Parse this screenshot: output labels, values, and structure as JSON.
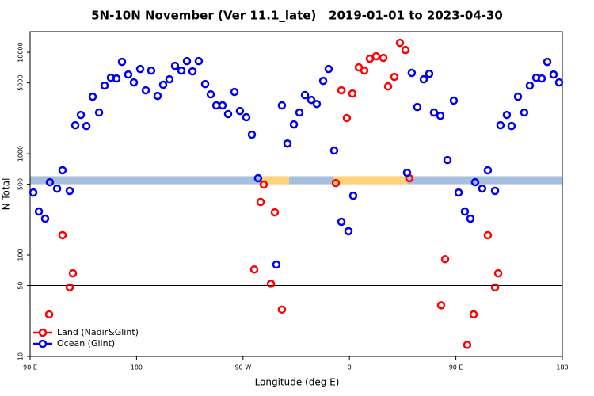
{
  "chart_data": {
    "type": "scatter",
    "title": "5N-10N November (Ver 11.1_late)   2019-01-01 to 2023-04-30",
    "x_label": "Longitude (deg E)",
    "y_label": "N Total",
    "log_y": true,
    "legend": "lower left",
    "xlim": [
      90,
      540
    ],
    "xticks": [
      {
        "value": 90,
        "label": "90 E"
      },
      {
        "value": 180,
        "label": "180"
      },
      {
        "value": 270,
        "label": "90 W"
      },
      {
        "value": 360,
        "label": "0"
      },
      {
        "value": 450,
        "label": "90 E"
      },
      {
        "value": 540,
        "label": "180"
      }
    ],
    "ylim": [
      10,
      16000
    ],
    "yticks": [
      10,
      50,
      100,
      500,
      1000,
      5000,
      10000
    ],
    "hline": 50,
    "band": {
      "ylim": [
        500,
        600
      ],
      "color": "#a7bfdc",
      "highlight_color": "#ffd37a",
      "highlights": [
        [
          285,
          309
        ],
        [
          346,
          409
        ]
      ]
    },
    "series": [
      {
        "name": "Land (Nadir&Glint)",
        "color": "#ff0000",
        "x": [
          106.1,
          117.4,
          123.5,
          126.2,
          279.5,
          284.9,
          287.5,
          293.6,
          296.9,
          302.9,
          348.5,
          353.2,
          357.8,
          362.5,
          367.9,
          372.6,
          377.3,
          382.6,
          388.7,
          392.7,
          398.0,
          402.7,
          407.4,
          410.7,
          437.5,
          440.9,
          459.6,
          465.0,
          477.0,
          483.1,
          485.8
        ],
        "values": [
          26,
          157,
          48,
          66,
          72,
          334,
          496,
          52,
          264,
          29,
          514,
          4220,
          2250,
          3920,
          7110,
          6610,
          8660,
          9140,
          8820,
          4610,
          5730,
          12400,
          10550,
          573,
          32,
          91,
          13,
          26,
          157,
          48,
          66
        ]
      },
      {
        "name": "Ocean (Glint)",
        "color": "#0000ee",
        "x": [
          92.7,
          97.4,
          102.7,
          106.7,
          112.8,
          117.4,
          123.5,
          128.2,
          132.9,
          137.6,
          142.9,
          148.3,
          153.0,
          158.3,
          163.0,
          167.7,
          173.0,
          177.7,
          183.1,
          187.8,
          192.4,
          197.8,
          202.5,
          207.8,
          212.5,
          217.9,
          222.6,
          227.3,
          232.6,
          238.0,
          242.7,
          247.4,
          252.7,
          257.4,
          262.8,
          267.4,
          272.8,
          277.5,
          282.8,
          298.2,
          302.9,
          307.6,
          313.0,
          317.7,
          322.4,
          327.7,
          332.4,
          337.8,
          342.4,
          347.1,
          353.2,
          359.2,
          363.2,
          408.7,
          412.7,
          417.4,
          422.8,
          427.5,
          431.5,
          436.9,
          442.9,
          448.2,
          452.3,
          457.6,
          462.3,
          466.3,
          472.3,
          477.0,
          483.1,
          487.7,
          493.1,
          497.1,
          502.5,
          507.8,
          512.5,
          517.9,
          522.6,
          527.3,
          532.6,
          537.3
        ],
        "values": [
          414,
          269,
          229,
          523,
          453,
          686,
          430,
          1910,
          2415,
          1875,
          3650,
          2550,
          4700,
          5620,
          5520,
          8060,
          6040,
          5050,
          6850,
          4220,
          6610,
          3720,
          4790,
          5420,
          7360,
          6610,
          8200,
          6490,
          8200,
          4870,
          3850,
          3000,
          3000,
          2460,
          4070,
          2640,
          2290,
          1540,
          573,
          80.6,
          3000,
          1260,
          1945,
          2550,
          3790,
          3400,
          3100,
          5230,
          6850,
          1075,
          213,
          172,
          385,
          649,
          6270,
          2890,
          5420,
          6150,
          2550,
          2370,
          866,
          3340,
          414,
          269,
          229,
          523,
          453,
          686,
          430,
          1910,
          2415,
          1875,
          3650,
          2550,
          4700,
          5620,
          5520,
          8060,
          6040,
          5050
        ]
      }
    ]
  }
}
